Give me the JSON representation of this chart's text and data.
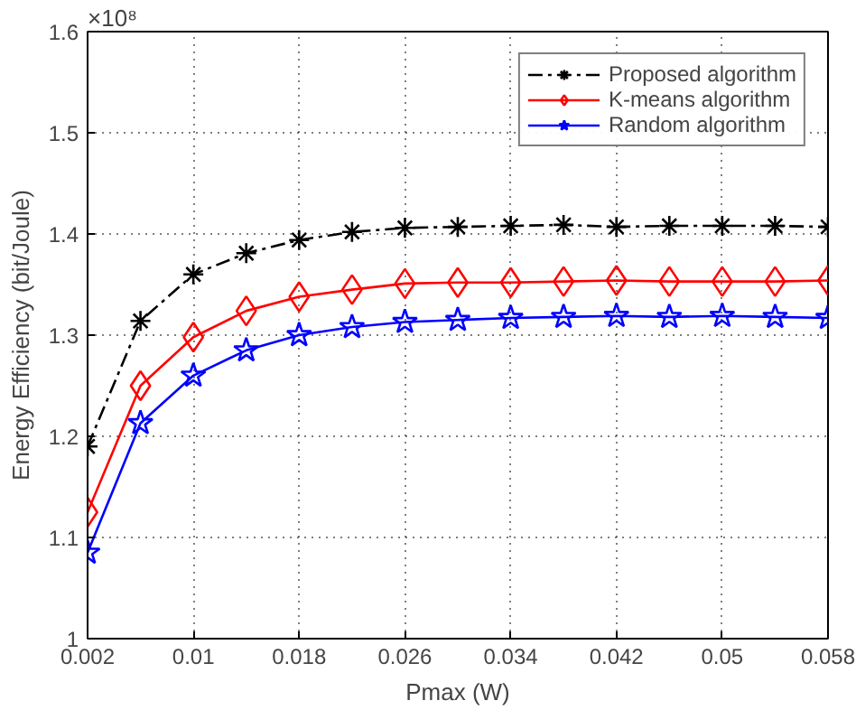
{
  "chart_data": {
    "type": "line",
    "xlabel": "Pmax (W)",
    "ylabel": "Energy Efficiency (bit/Joule)",
    "annotations": [
      "×10⁸"
    ],
    "x": [
      0.002,
      0.006,
      0.01,
      0.014,
      0.018,
      0.022,
      0.026,
      0.03,
      0.034,
      0.038,
      0.042,
      0.046,
      0.05,
      0.054,
      0.058
    ],
    "series": [
      {
        "name": "Proposed algorithm",
        "color": "#000000",
        "marker": "cross",
        "line_style": "dashed",
        "values": [
          1.19,
          1.314,
          1.36,
          1.381,
          1.394,
          1.402,
          1.406,
          1.407,
          1.408,
          1.409,
          1.407,
          1.408,
          1.408,
          1.408,
          1.407
        ]
      },
      {
        "name": "K-means algorithm",
        "color": "#ff0000",
        "marker": "diamond",
        "line_style": "solid",
        "values": [
          1.125,
          1.25,
          1.298,
          1.324,
          1.338,
          1.345,
          1.351,
          1.352,
          1.352,
          1.353,
          1.354,
          1.353,
          1.353,
          1.353,
          1.354
        ]
      },
      {
        "name": "Random algorithm",
        "color": "#0000ff",
        "marker": "star",
        "line_style": "solid",
        "values": [
          1.085,
          1.213,
          1.26,
          1.285,
          1.3,
          1.308,
          1.313,
          1.315,
          1.317,
          1.318,
          1.319,
          1.318,
          1.319,
          1.318,
          1.317
        ]
      }
    ],
    "xlim": [
      0.002,
      0.058
    ],
    "xticks": [
      0.002,
      0.01,
      0.018,
      0.026,
      0.034,
      0.042,
      0.05,
      0.058
    ],
    "ylim": [
      1.0,
      1.6
    ],
    "yticks": [
      1,
      1.1,
      1.2,
      1.3,
      1.4,
      1.5,
      1.6
    ],
    "grid": true,
    "legend": "top right"
  }
}
